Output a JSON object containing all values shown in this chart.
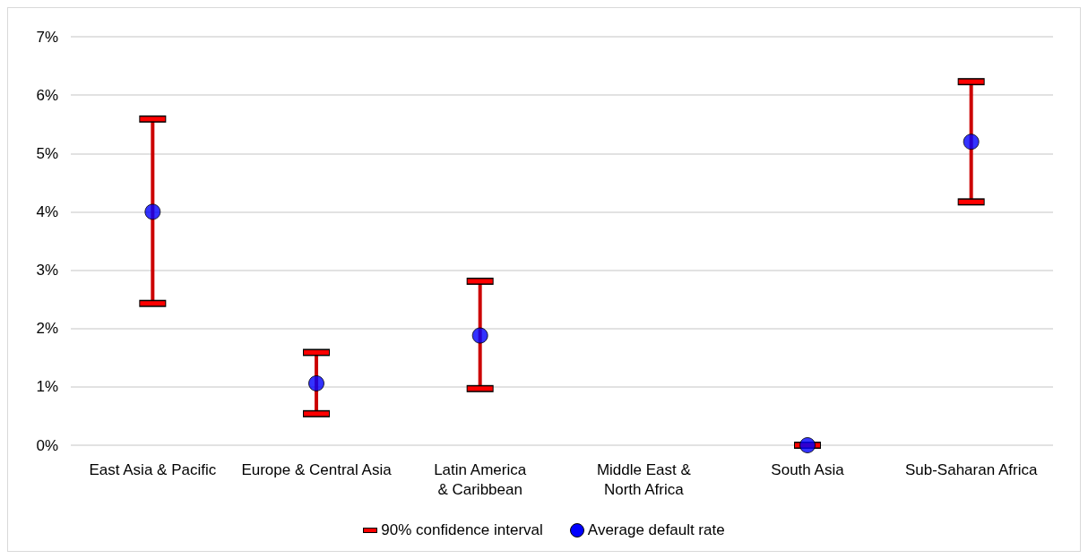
{
  "chart_data": {
    "type": "scatter",
    "categories": [
      "East Asia & Pacific",
      "Europe & Central Asia",
      "Latin America & Caribbean",
      "Middle East & North Africa",
      "South Asia",
      "Sub-Saharan Africa"
    ],
    "series": [
      {
        "name": "Average default rate",
        "color": "#0000ff",
        "values": [
          4.0,
          1.06,
          1.88,
          null,
          0,
          5.2
        ],
        "errors": [
          [
            2.43,
            5.59
          ],
          [
            0.54,
            1.59
          ],
          [
            0.97,
            2.81
          ],
          null,
          [
            0,
            0
          ],
          [
            4.17,
            6.23
          ]
        ]
      }
    ],
    "annotations": [
      "90% confidence interval"
    ],
    "ylim": [
      0,
      7
    ],
    "yticks": [
      {
        "value": 0,
        "label": "0%"
      },
      {
        "value": 1,
        "label": "1%"
      },
      {
        "value": 2,
        "label": "2%"
      },
      {
        "value": 3,
        "label": "3%"
      },
      {
        "value": 4,
        "label": "4%"
      },
      {
        "value": 5,
        "label": "5%"
      },
      {
        "value": 6,
        "label": "6%"
      },
      {
        "value": 7,
        "label": "7%"
      }
    ],
    "grid": "y",
    "legend": "bottom",
    "marker": "circle"
  }
}
